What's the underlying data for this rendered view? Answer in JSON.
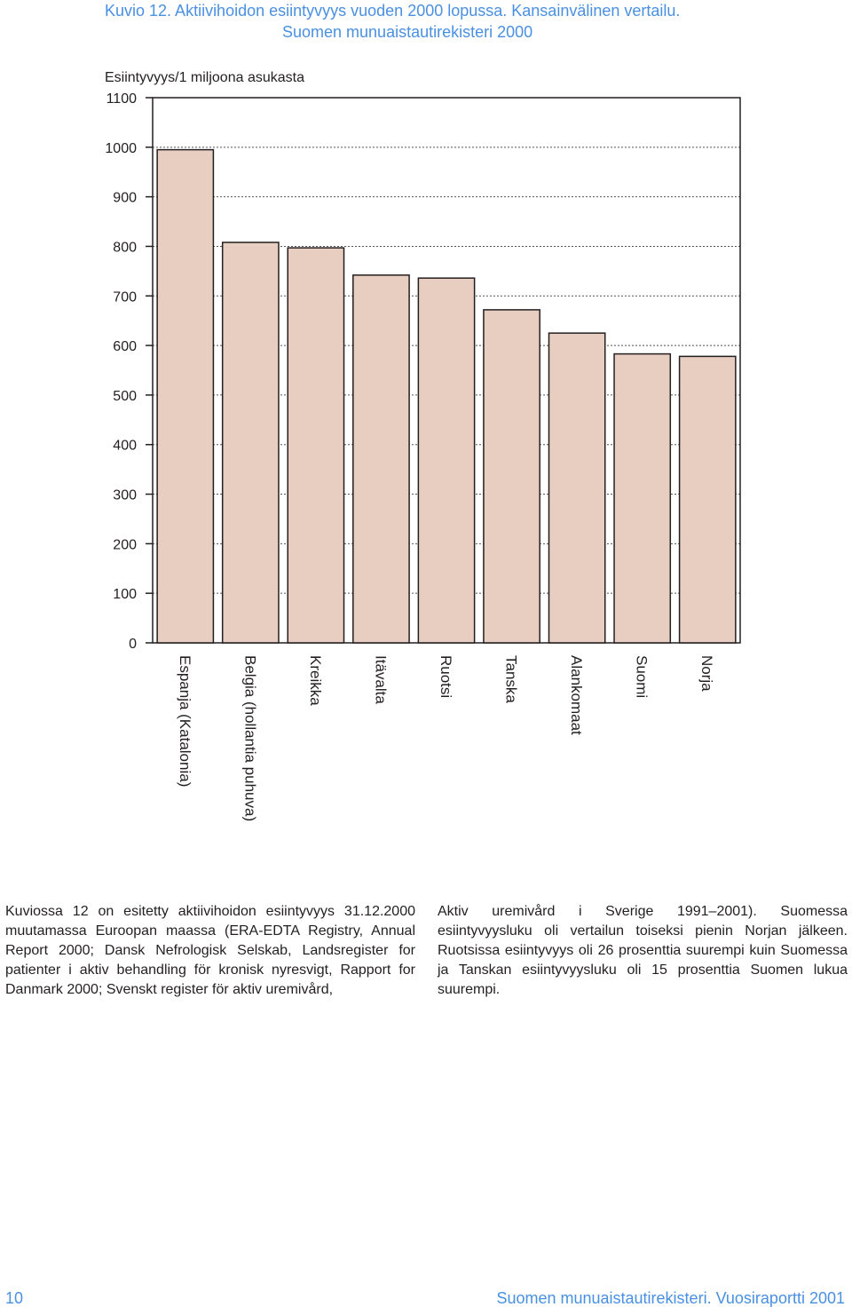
{
  "title": {
    "line1": "Kuvio 12. Aktiivihoidon esiintyvyys vuoden 2000 lopussa. Kansainvälinen vertailu.",
    "line2": "Suomen munuaistautirekisteri 2000"
  },
  "chart_data": {
    "type": "bar",
    "ylabel": "Esiintyvyys/1 miljoona asukasta",
    "xlabel": "",
    "ylim": [
      0,
      1100
    ],
    "yticks": [
      0,
      100,
      200,
      300,
      400,
      500,
      600,
      700,
      800,
      900,
      1000,
      1100
    ],
    "grid": "horizontal dashed",
    "categories": [
      "Espanja (Katalonia)",
      "Belgia (hollantia puhuva)",
      "Kreikka",
      "Itävalta",
      "Ruotsi",
      "Tanska",
      "Alankomaat",
      "Suomi",
      "Norja"
    ],
    "values": [
      995,
      808,
      797,
      742,
      736,
      672,
      625,
      583,
      578
    ],
    "bar_color": "#e8cdc1"
  },
  "text": {
    "left": "Kuviossa 12 on esitetty aktiivihoidon esiintyvyys 31.12.2000 muutamassa Euroopan maassa (ERA-EDTA Registry, Annual Report 2000; Dansk Nefrologisk Selskab, Landsregister for patienter i aktiv behandling för kronisk nyresvigt, Rapport for Danmark 2000; Svenskt register för aktiv uremivård,",
    "right": "Aktiv uremivård i Sverige 1991–2001). Suomessa esiintyvyysluku oli vertailun toiseksi pienin Norjan jälkeen. Ruotsissa esiintyvyys oli 26 prosenttia suurempi kuin Suomessa ja Tanskan esiintyvyysluku oli 15 prosenttia Suomen lukua suurempi."
  },
  "footer": {
    "page_number": "10",
    "publication": "Suomen munuaistautirekisteri. Vuosiraportti 2001"
  }
}
